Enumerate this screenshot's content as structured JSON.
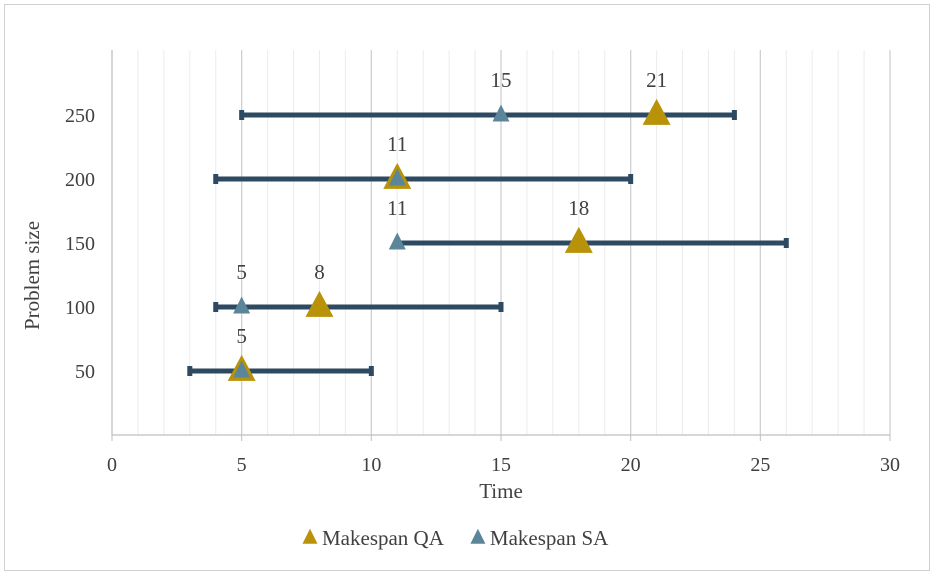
{
  "chart_data": {
    "type": "scatter",
    "title": "",
    "xlabel": "Time",
    "ylabel": "Problem size",
    "xlim": [
      0,
      30
    ],
    "x_ticks": [
      0,
      5,
      10,
      15,
      20,
      25,
      30
    ],
    "x_minor_step": 1,
    "categories": [
      "50",
      "100",
      "150",
      "200",
      "250"
    ],
    "ranges": [
      {
        "category": "50",
        "min": 3,
        "max": 10
      },
      {
        "category": "100",
        "min": 4,
        "max": 15
      },
      {
        "category": "150",
        "min": 11,
        "max": 26
      },
      {
        "category": "200",
        "min": 4,
        "max": 20
      },
      {
        "category": "250",
        "min": 5,
        "max": 24
      }
    ],
    "series": [
      {
        "name": "Makespan QA",
        "color": "#B8930A",
        "marker": "triangle-large",
        "values": [
          5,
          8,
          18,
          11,
          21
        ]
      },
      {
        "name": "Makespan SA",
        "color": "#5B8599",
        "marker": "triangle-small",
        "values": [
          5,
          5,
          11,
          11,
          15
        ]
      }
    ],
    "data_labels": [
      {
        "category": "50",
        "text": "5"
      },
      {
        "category": "100",
        "text": "5"
      },
      {
        "category": "100",
        "text": "8"
      },
      {
        "category": "150",
        "text": "11"
      },
      {
        "category": "150",
        "text": "18"
      },
      {
        "category": "200",
        "text": "11"
      },
      {
        "category": "250",
        "text": "15"
      },
      {
        "category": "250",
        "text": "21"
      }
    ],
    "range_color": "#2E4A62",
    "legend_position": "bottom"
  }
}
